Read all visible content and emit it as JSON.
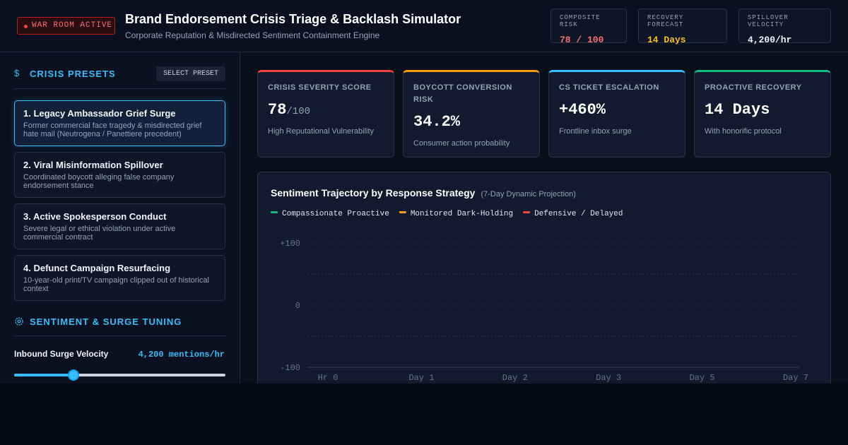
{
  "header": {
    "badge": "WAR ROOM ACTIVE",
    "title": "Brand Endorsement Crisis Triage & Backlash Simulator",
    "subtitle": "Corporate Reputation & Misdirected Sentiment Containment Engine",
    "stats": [
      {
        "label": "COMPOSITE RISK",
        "value": "78 / 100"
      },
      {
        "label": "RECOVERY FORECAST",
        "value": "14 Days"
      },
      {
        "label": "SPILLOVER VELOCITY",
        "value": "4,200/hr"
      }
    ]
  },
  "sidebar": {
    "presets_title": "CRISIS PRESETS",
    "presets_button": "SELECT PRESET",
    "presets": [
      {
        "title": "1. Legacy Ambassador Grief Surge",
        "desc": "Former commercial face tragedy & misdirected grief hate mail (Neutrogena / Panettiere precedent)"
      },
      {
        "title": "2. Viral Misinformation Spillover",
        "desc": "Coordinated boycott alleging false company endorsement stance"
      },
      {
        "title": "3. Active Spokesperson Conduct",
        "desc": "Severe legal or ethical violation under active commercial contract"
      },
      {
        "title": "4. Defunct Campaign Resurfacing",
        "desc": "10-year-old print/TV campaign clipped out of historical context"
      }
    ],
    "tuning_title": "SENTIMENT & SURGE TUNING",
    "slider_label": "Inbound Surge Velocity",
    "slider_value": "4,200 mentions/hr"
  },
  "kpis": [
    {
      "label": "CRISIS SEVERITY SCORE",
      "value": "78",
      "suffix": "/100",
      "note": "High Reputational Vulnerability"
    },
    {
      "label": "BOYCOTT CONVERSION RISK",
      "value": "34.2%",
      "note": "Consumer action probability"
    },
    {
      "label": "CS TICKET ESCALATION",
      "value": "+460%",
      "note": "Frontline inbox surge"
    },
    {
      "label": "PROACTIVE RECOVERY",
      "value": "14 Days",
      "note": "With honorific protocol"
    }
  ],
  "chart_data": {
    "type": "line",
    "title": "Sentiment Trajectory by Response Strategy",
    "subtitle": "(7-Day Dynamic Projection)",
    "categories": [
      "Hr 0",
      "Day 1",
      "Day 2",
      "Day 3",
      "Day 5",
      "Day 7"
    ],
    "series": [
      {
        "name": "Compassionate Proactive",
        "color": "#10b981"
      },
      {
        "name": "Monitored Dark-Holding",
        "color": "#f59e0b"
      },
      {
        "name": "Defensive / Delayed",
        "color": "#ef4444"
      }
    ],
    "ylim": [
      -100,
      100
    ],
    "yticks": [
      {
        "value": 100,
        "label": "+100"
      },
      0,
      -100
    ],
    "grid": true
  }
}
